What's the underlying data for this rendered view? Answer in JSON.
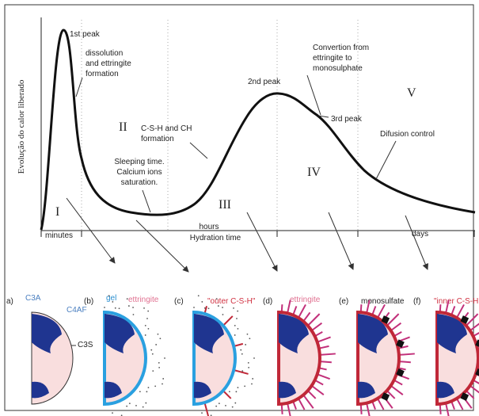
{
  "graph": {
    "y_axis_label": "Evolução do calor liberado",
    "regions": [
      "I",
      "II",
      "III",
      "IV",
      "V"
    ],
    "annotations": {
      "first_peak": "1st peak",
      "dissolution": [
        "dissolution",
        "and ettringite",
        "formation"
      ],
      "csh_formation": [
        "C-S-H and CH",
        "formation"
      ],
      "sleeping": [
        "Sleeping time.",
        "Calcium ions",
        "saturation."
      ],
      "second_peak": "2nd peak",
      "conversion": [
        "Convertion from",
        "ettringite to",
        "monosulphate"
      ],
      "third_peak": "3rd peak",
      "diffusion": "Difusion control"
    },
    "time_scale": {
      "minutes": "minutes",
      "hours": "hours",
      "hydration_time": "Hydration time",
      "days": "days"
    }
  },
  "panels": [
    {
      "tag": "a)",
      "labels": [
        "C3A",
        "C4AF",
        "C3S"
      ]
    },
    {
      "tag": "(b)",
      "labels": [
        "gel",
        "ettringite"
      ]
    },
    {
      "tag": "(c)",
      "labels": [
        "\"outer C-S-H\""
      ]
    },
    {
      "tag": "(d)",
      "labels": [
        "ettringite"
      ]
    },
    {
      "tag": "(e)",
      "labels": [
        "monosulfate"
      ]
    },
    {
      "tag": "(f)",
      "labels": [
        "\"inner C-S-H"
      ]
    }
  ]
}
